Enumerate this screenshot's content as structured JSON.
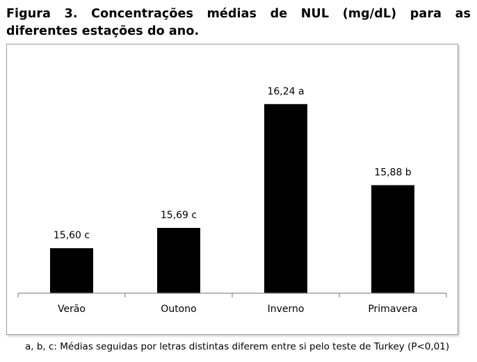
{
  "figure": {
    "title": "Figura 3. Concentrações médias de NUL (mg/dL) para as diferentes estações do ano.",
    "footnote": "a, b, c: Médias seguidas por letras distintas diferem entre si pelo teste de Turkey (P<0,01)"
  },
  "chart_data": {
    "type": "bar",
    "categories": [
      "Verão",
      "Outono",
      "Inverno",
      "Primavera"
    ],
    "values": [
      15.6,
      15.69,
      16.24,
      15.88
    ],
    "data_labels": [
      "15,60 c",
      "15,69 c",
      "16,24 a",
      "15,88 b"
    ],
    "title": "",
    "xlabel": "",
    "ylabel": "",
    "ylim": [
      15.4,
      16.4
    ],
    "grid": false,
    "legend": "none",
    "bar_color": "#000000",
    "axis_color": "#8c8c8c"
  }
}
